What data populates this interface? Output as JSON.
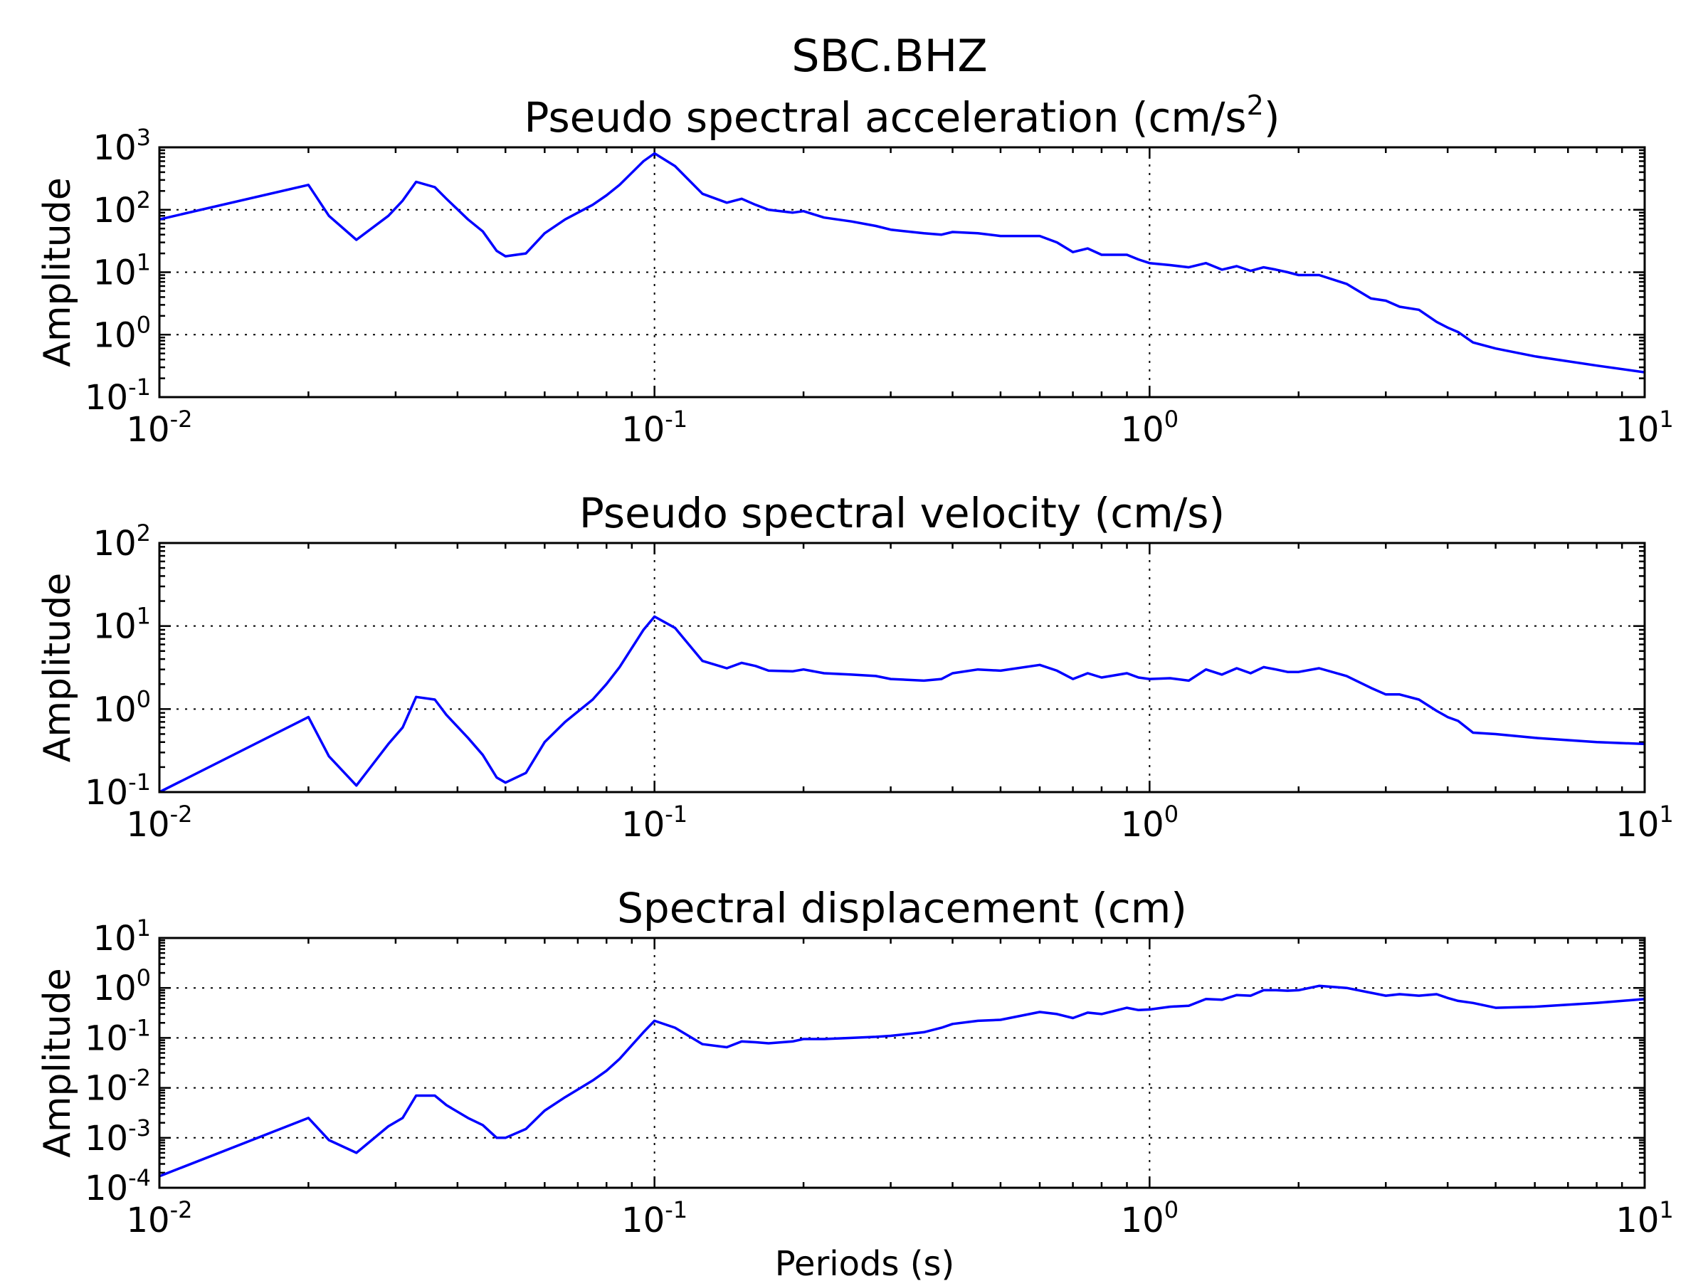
{
  "figure": {
    "suptitle": "SBC.BHZ",
    "xlabel": "Periods (s)",
    "line_color": "#0000ff"
  },
  "chart_data": [
    {
      "type": "line",
      "title": "Pseudo spectral acceleration (cm/s",
      "title_sup": "2",
      "title_end": ")",
      "ylabel": "Amplitude",
      "xscale": "log",
      "yscale": "log",
      "xlim": [
        0.01,
        10
      ],
      "ylim": [
        0.1,
        1000
      ],
      "grid": true,
      "x_ticks": [
        "10",
        "10",
        "10",
        "10"
      ],
      "x_tick_exp": [
        "-2",
        "-1",
        "0",
        "1"
      ],
      "y_ticks": [
        "10",
        "10",
        "10",
        "10",
        "10"
      ],
      "y_tick_exp": [
        "-1",
        "0",
        "1",
        "2",
        "3"
      ],
      "x": [
        0.01,
        0.02,
        0.022,
        0.025,
        0.029,
        0.031,
        0.033,
        0.036,
        0.038,
        0.042,
        0.045,
        0.048,
        0.05,
        0.055,
        0.06,
        0.066,
        0.075,
        0.08,
        0.085,
        0.095,
        0.1,
        0.11,
        0.125,
        0.14,
        0.15,
        0.16,
        0.17,
        0.19,
        0.2,
        0.22,
        0.25,
        0.28,
        0.3,
        0.35,
        0.38,
        0.4,
        0.45,
        0.5,
        0.6,
        0.65,
        0.7,
        0.75,
        0.8,
        0.9,
        0.95,
        1.0,
        1.1,
        1.2,
        1.3,
        1.4,
        1.5,
        1.6,
        1.7,
        1.8,
        1.9,
        2.0,
        2.2,
        2.5,
        2.8,
        3.0,
        3.2,
        3.5,
        3.8,
        4.0,
        4.2,
        4.5,
        5.0,
        6.0,
        8.0,
        10.0
      ],
      "values": [
        70,
        250,
        80,
        33,
        80,
        140,
        280,
        230,
        150,
        70,
        45,
        22,
        18,
        20,
        42,
        70,
        120,
        170,
        250,
        600,
        800,
        500,
        180,
        130,
        150,
        120,
        100,
        90,
        95,
        75,
        65,
        55,
        48,
        42,
        40,
        44,
        42,
        38,
        38,
        30,
        21,
        24,
        19,
        19,
        16,
        14,
        13,
        12,
        14,
        11,
        12.5,
        10.5,
        12,
        11,
        10,
        9,
        9,
        6.5,
        3.8,
        3.5,
        2.8,
        2.5,
        1.6,
        1.3,
        1.1,
        0.75,
        0.6,
        0.45,
        0.32,
        0.25
      ]
    },
    {
      "type": "line",
      "title": "Pseudo spectral velocity (cm/s)",
      "title_sup": "",
      "title_end": "",
      "ylabel": "Amplitude",
      "xscale": "log",
      "yscale": "log",
      "xlim": [
        0.01,
        10
      ],
      "ylim": [
        0.1,
        100
      ],
      "grid": true,
      "x_ticks": [
        "10",
        "10",
        "10",
        "10"
      ],
      "x_tick_exp": [
        "-2",
        "-1",
        "0",
        "1"
      ],
      "y_ticks": [
        "10",
        "10",
        "10",
        "10"
      ],
      "y_tick_exp": [
        "-1",
        "0",
        "1",
        "2"
      ],
      "x": [
        0.01,
        0.02,
        0.022,
        0.025,
        0.029,
        0.031,
        0.033,
        0.036,
        0.038,
        0.042,
        0.045,
        0.048,
        0.05,
        0.055,
        0.06,
        0.066,
        0.075,
        0.08,
        0.085,
        0.095,
        0.1,
        0.11,
        0.125,
        0.14,
        0.15,
        0.16,
        0.17,
        0.19,
        0.2,
        0.22,
        0.25,
        0.28,
        0.3,
        0.35,
        0.38,
        0.4,
        0.45,
        0.5,
        0.6,
        0.65,
        0.7,
        0.75,
        0.8,
        0.9,
        0.95,
        1.0,
        1.1,
        1.2,
        1.3,
        1.4,
        1.5,
        1.6,
        1.7,
        1.8,
        1.9,
        2.0,
        2.2,
        2.5,
        2.8,
        3.0,
        3.2,
        3.5,
        3.8,
        4.0,
        4.2,
        4.5,
        5.0,
        6.0,
        8.0,
        10.0
      ],
      "values": [
        0.1,
        0.8,
        0.27,
        0.12,
        0.38,
        0.6,
        1.4,
        1.3,
        0.85,
        0.45,
        0.28,
        0.15,
        0.13,
        0.17,
        0.4,
        0.7,
        1.3,
        2.0,
        3.2,
        9.0,
        13.0,
        9.5,
        3.8,
        3.1,
        3.6,
        3.3,
        2.9,
        2.85,
        3.0,
        2.7,
        2.6,
        2.5,
        2.3,
        2.2,
        2.3,
        2.7,
        3.0,
        2.9,
        3.4,
        2.9,
        2.3,
        2.7,
        2.4,
        2.7,
        2.4,
        2.3,
        2.35,
        2.2,
        3.0,
        2.6,
        3.1,
        2.7,
        3.2,
        3.0,
        2.8,
        2.8,
        3.1,
        2.5,
        1.8,
        1.5,
        1.5,
        1.3,
        0.95,
        0.8,
        0.72,
        0.52,
        0.5,
        0.45,
        0.4,
        0.38
      ]
    },
    {
      "type": "line",
      "title": "Spectral displacement (cm)",
      "title_sup": "",
      "title_end": "",
      "ylabel": "Amplitude",
      "xscale": "log",
      "yscale": "log",
      "xlim": [
        0.01,
        10
      ],
      "ylim": [
        0.0001,
        10
      ],
      "grid": true,
      "x_ticks": [
        "10",
        "10",
        "10",
        "10"
      ],
      "x_tick_exp": [
        "-2",
        "-1",
        "0",
        "1"
      ],
      "y_ticks": [
        "10",
        "10",
        "10",
        "10",
        "10",
        "10"
      ],
      "y_tick_exp": [
        "-4",
        "-3",
        "-2",
        "-1",
        "0",
        "1"
      ],
      "x": [
        0.01,
        0.02,
        0.022,
        0.025,
        0.029,
        0.031,
        0.033,
        0.036,
        0.038,
        0.042,
        0.045,
        0.048,
        0.05,
        0.055,
        0.06,
        0.066,
        0.075,
        0.08,
        0.085,
        0.095,
        0.1,
        0.11,
        0.125,
        0.14,
        0.15,
        0.16,
        0.17,
        0.19,
        0.2,
        0.22,
        0.25,
        0.28,
        0.3,
        0.35,
        0.38,
        0.4,
        0.45,
        0.5,
        0.6,
        0.65,
        0.7,
        0.75,
        0.8,
        0.9,
        0.95,
        1.0,
        1.1,
        1.2,
        1.3,
        1.4,
        1.5,
        1.6,
        1.7,
        1.8,
        1.9,
        2.0,
        2.2,
        2.5,
        2.8,
        3.0,
        3.2,
        3.5,
        3.8,
        4.0,
        4.2,
        4.5,
        5.0,
        6.0,
        8.0,
        10.0
      ],
      "values": [
        0.00017,
        0.0025,
        0.0009,
        0.0005,
        0.0017,
        0.0025,
        0.007,
        0.007,
        0.0045,
        0.0025,
        0.0018,
        0.001,
        0.001,
        0.0015,
        0.0035,
        0.0065,
        0.014,
        0.022,
        0.038,
        0.13,
        0.22,
        0.16,
        0.075,
        0.065,
        0.085,
        0.082,
        0.078,
        0.085,
        0.095,
        0.095,
        0.1,
        0.105,
        0.11,
        0.13,
        0.16,
        0.19,
        0.22,
        0.23,
        0.33,
        0.3,
        0.25,
        0.32,
        0.3,
        0.4,
        0.36,
        0.37,
        0.42,
        0.44,
        0.6,
        0.58,
        0.72,
        0.7,
        0.9,
        0.9,
        0.88,
        0.9,
        1.1,
        1.0,
        0.8,
        0.7,
        0.75,
        0.7,
        0.75,
        0.63,
        0.55,
        0.5,
        0.4,
        0.42,
        0.5,
        0.6
      ]
    }
  ]
}
